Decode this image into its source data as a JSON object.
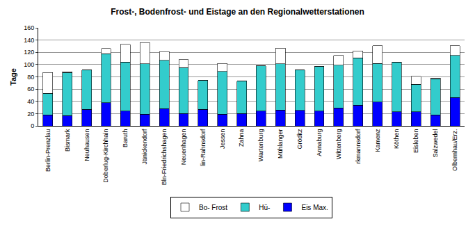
{
  "chart_data": {
    "type": "bar",
    "title": "Frost-, Bodenfrost- und Eistage an den Regionalwetterstationen",
    "y_label": "Tage",
    "categories": [
      "Berlin-Prenzlau",
      "Bismark",
      "Neuhausen",
      "Doberlug-Kirchhain",
      "Baruth",
      "Jänickendorf",
      "Bln-Friedrichshagen",
      "Neuenhagen",
      "lin-Rahnsdorf",
      "Jessen",
      "Zahna",
      "Wartenburg",
      "Mühlanger",
      "Gröditz",
      "Annaburg",
      "Wittenberg",
      "rkmannsdorf",
      "Kamenz",
      "Köthen",
      "Eisleben",
      "Salzwedel",
      "Olbernhau/Erz."
    ],
    "series": [
      {
        "name": "Eis Max.",
        "color": "#0000ff",
        "values": [
          18,
          17,
          27,
          38,
          24,
          19,
          28,
          20,
          27,
          19,
          20,
          24,
          26,
          25,
          24,
          29,
          34,
          39,
          23,
          23,
          18,
          46
        ]
      },
      {
        "name": "Hü-",
        "color": "#33cccc",
        "values": [
          35,
          70,
          64,
          80,
          80,
          82,
          79,
          75,
          47,
          70,
          53,
          74,
          75,
          66,
          73,
          70,
          77,
          63,
          81,
          45,
          59,
          69
        ]
      },
      {
        "name": "Bo- Frost",
        "color": "#ffffff",
        "values": [
          34,
          1,
          0,
          8,
          29,
          35,
          14,
          13,
          0,
          13,
          0,
          0,
          26,
          0,
          0,
          16,
          11,
          29,
          0,
          13,
          1,
          16
        ]
      }
    ],
    "stacked": true,
    "ylim": [
      0,
      160
    ],
    "yticks": [
      0,
      20,
      40,
      60,
      80,
      100,
      120,
      140,
      160
    ],
    "grid": true,
    "legend": "bottom"
  }
}
